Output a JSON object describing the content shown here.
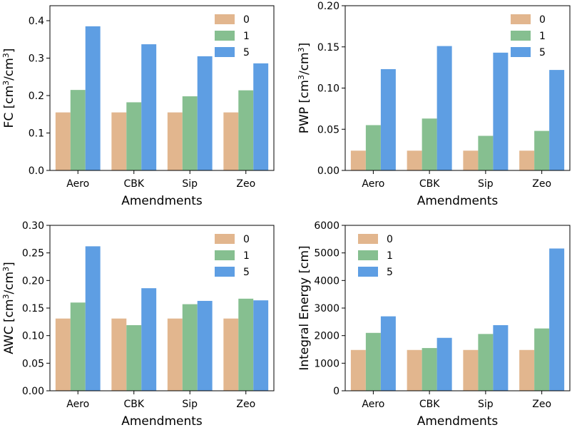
{
  "colors": {
    "0": "#e2b68e",
    "1": "#86bf90",
    "5": "#5e9ee3"
  },
  "chart_data": [
    {
      "type": "bar",
      "title": "",
      "xlabel": "Amendments",
      "ylabel": "FC [cm³/cm³]",
      "categories": [
        "Aero",
        "CBK",
        "Sip",
        "Zeo"
      ],
      "ylim": [
        0,
        0.44
      ],
      "yticks": [
        0.0,
        0.1,
        0.2,
        0.3,
        0.4
      ],
      "ytick_labels": [
        "0.0",
        "0.1",
        "0.2",
        "0.3",
        "0.4"
      ],
      "legend": "top-right",
      "series": [
        {
          "name": "0",
          "values": [
            0.155,
            0.155,
            0.155,
            0.155
          ]
        },
        {
          "name": "1",
          "values": [
            0.215,
            0.182,
            0.198,
            0.214
          ]
        },
        {
          "name": "5",
          "values": [
            0.385,
            0.337,
            0.305,
            0.286
          ]
        }
      ]
    },
    {
      "type": "bar",
      "title": "",
      "xlabel": "Amendments",
      "ylabel": "PWP [cm³/cm³]",
      "categories": [
        "Aero",
        "CBK",
        "Sip",
        "Zeo"
      ],
      "ylim": [
        0,
        0.2
      ],
      "yticks": [
        0.0,
        0.05,
        0.1,
        0.15,
        0.2
      ],
      "ytick_labels": [
        "0.00",
        "0.05",
        "0.10",
        "0.15",
        "0.20"
      ],
      "legend": "top-right",
      "series": [
        {
          "name": "0",
          "values": [
            0.024,
            0.024,
            0.024,
            0.024
          ]
        },
        {
          "name": "1",
          "values": [
            0.055,
            0.063,
            0.042,
            0.048
          ]
        },
        {
          "name": "5",
          "values": [
            0.123,
            0.151,
            0.143,
            0.122
          ]
        }
      ]
    },
    {
      "type": "bar",
      "title": "",
      "xlabel": "Amendments",
      "ylabel": "AWC [cm³/cm³]",
      "categories": [
        "Aero",
        "CBK",
        "Sip",
        "Zeo"
      ],
      "ylim": [
        0,
        0.3
      ],
      "yticks": [
        0.0,
        0.05,
        0.1,
        0.15,
        0.2,
        0.25,
        0.3
      ],
      "ytick_labels": [
        "0.00",
        "0.05",
        "0.10",
        "0.15",
        "0.20",
        "0.25",
        "0.30"
      ],
      "legend": "top-right",
      "series": [
        {
          "name": "0",
          "values": [
            0.131,
            0.131,
            0.131,
            0.131
          ]
        },
        {
          "name": "1",
          "values": [
            0.16,
            0.119,
            0.157,
            0.167
          ]
        },
        {
          "name": "5",
          "values": [
            0.262,
            0.186,
            0.163,
            0.164
          ]
        }
      ]
    },
    {
      "type": "bar",
      "title": "",
      "xlabel": "Amendments",
      "ylabel": "Integral Energy [cm]",
      "categories": [
        "Aero",
        "CBK",
        "Sip",
        "Zeo"
      ],
      "ylim": [
        0,
        6000
      ],
      "yticks": [
        0,
        1000,
        2000,
        3000,
        4000,
        5000,
        6000
      ],
      "ytick_labels": [
        "0",
        "1000",
        "2000",
        "3000",
        "4000",
        "5000",
        "6000"
      ],
      "legend": "top-left",
      "series": [
        {
          "name": "0",
          "values": [
            1480,
            1480,
            1480,
            1480
          ]
        },
        {
          "name": "1",
          "values": [
            2100,
            1550,
            2060,
            2260
          ]
        },
        {
          "name": "5",
          "values": [
            2700,
            1920,
            2380,
            5160
          ]
        }
      ]
    }
  ]
}
